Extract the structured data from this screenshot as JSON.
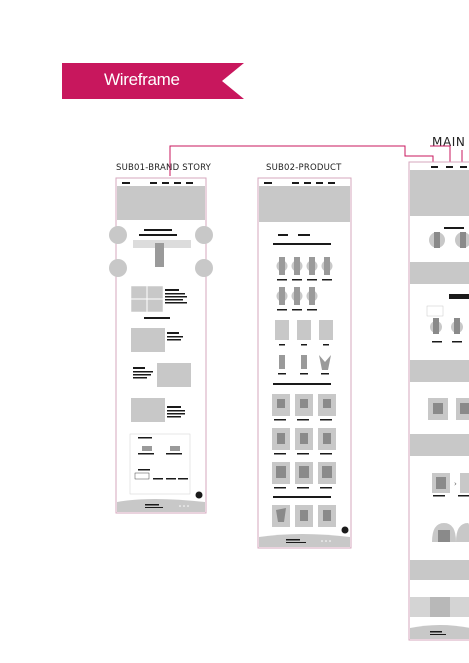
{
  "banner": {
    "title": "Wireframe",
    "color": "#c8175d"
  },
  "pages": {
    "sub01": {
      "label": "SUB01-BRAND STORY"
    },
    "sub02": {
      "label": "SUB02-PRODUCT"
    },
    "main": {
      "label": "MAIN"
    }
  },
  "colors": {
    "accent": "#c8175d",
    "block": "#c8c8c8",
    "dark": "#1a1a1a",
    "frame": "#d6a7bd"
  }
}
